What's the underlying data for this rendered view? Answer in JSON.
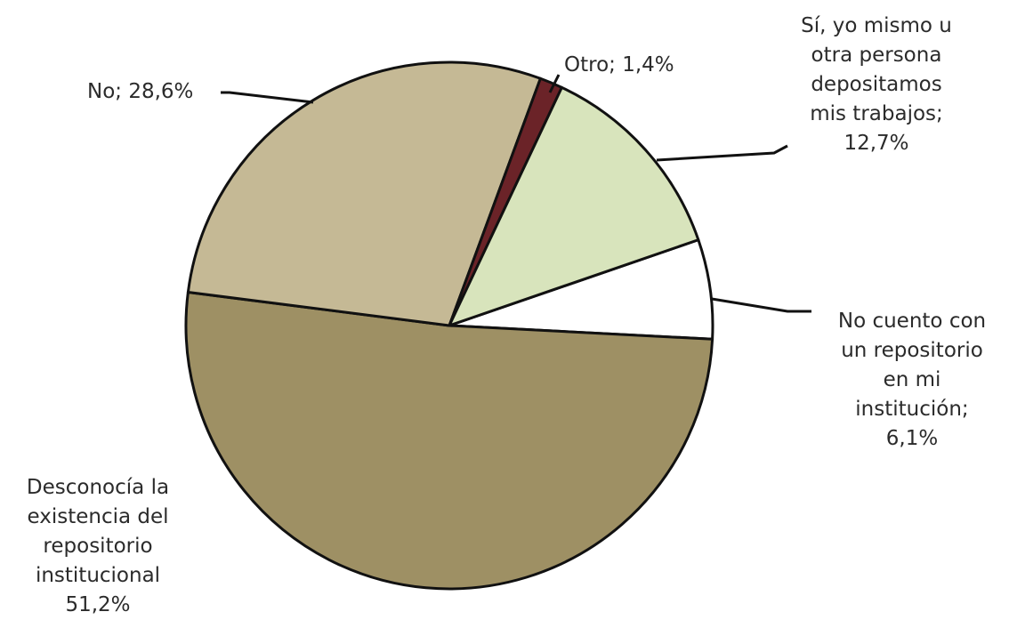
{
  "chart_data": {
    "type": "pie",
    "title": "",
    "slices": [
      {
        "name": "No cuento con un repositorio en mi institución",
        "value": 6.1,
        "value_label": "6,1%",
        "label_lines": [
          "No cuento con",
          "un repositorio",
          "en mi",
          "institución;",
          "6,1%"
        ],
        "color": "#ffffff"
      },
      {
        "name": "Desconocía la existencia del repositorio institucional",
        "value": 51.2,
        "value_label": "51,2%",
        "label_lines": [
          "Desconocía la",
          "existencia del",
          "repositorio",
          "institucional",
          "51,2%"
        ],
        "color": "#9e9064"
      },
      {
        "name": "No",
        "value": 28.6,
        "value_label": "28,6%",
        "label_lines": [
          "No; 28,6%"
        ],
        "color": "#c5b995"
      },
      {
        "name": "Otro",
        "value": 1.4,
        "value_label": "1,4%",
        "label_lines": [
          "Otro; 1,4%"
        ],
        "color": "#6b2328"
      },
      {
        "name": "Sí, yo mismo u otra persona depositamos mis trabajos",
        "value": 12.7,
        "value_label": "12,7%",
        "label_lines": [
          "Sí, yo mismo u",
          "otra persona",
          "depositamos",
          "mis trabajos;",
          "12,7%"
        ],
        "color": "#d8e4bc"
      }
    ],
    "start_angle_deg": 75,
    "direction": "clockwise",
    "legend": "none"
  }
}
